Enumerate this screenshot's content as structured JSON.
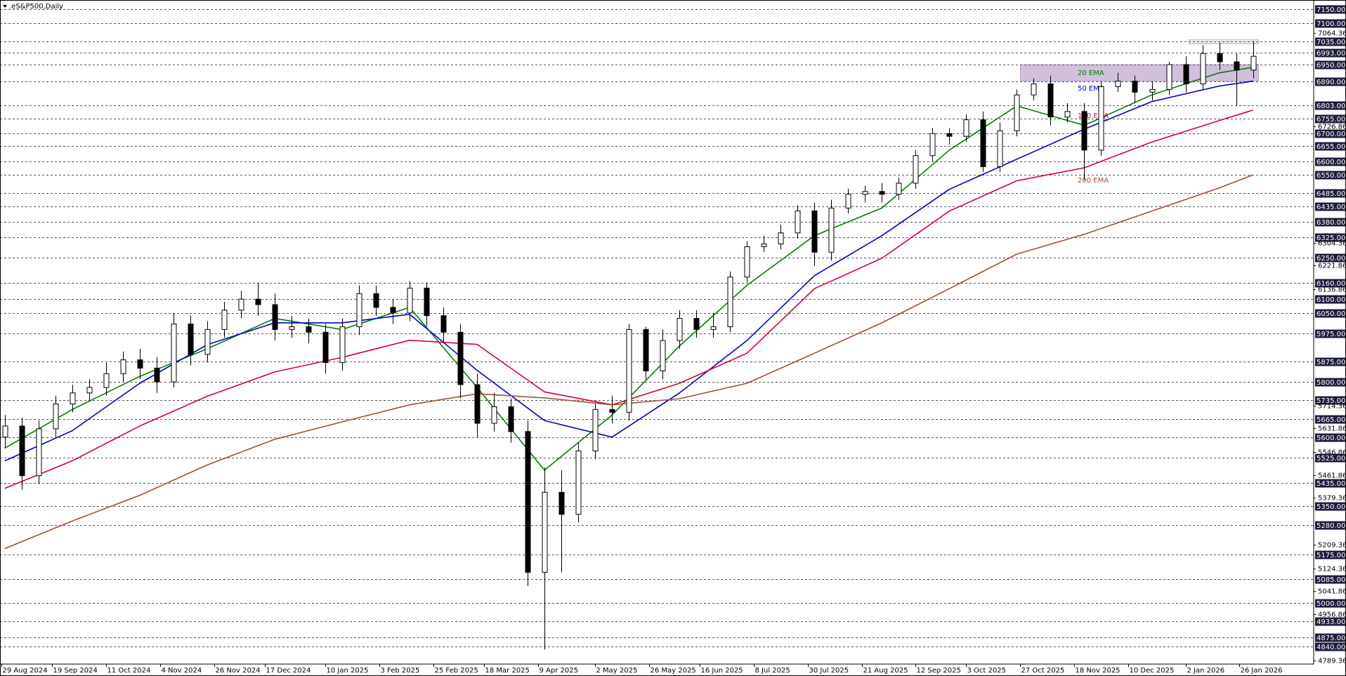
{
  "chart_data": {
    "type": "candlestick",
    "title": ".eS&P500,Daily",
    "ylim": [
      4780,
      7184
    ],
    "xlim": [
      "2024-08-29",
      "2026-02-25"
    ],
    "candles": {
      "x": [
        "2024-08-30",
        "2024-09-06",
        "2024-09-13",
        "2024-09-20",
        "2024-09-27",
        "2024-10-04",
        "2024-10-11",
        "2024-10-18",
        "2024-10-25",
        "2024-11-01",
        "2024-11-08",
        "2024-11-15",
        "2024-11-22",
        "2024-11-29",
        "2024-12-06",
        "2024-12-13",
        "2024-12-20",
        "2024-12-27",
        "2025-01-03",
        "2025-01-10",
        "2025-01-17",
        "2025-01-24",
        "2025-01-31",
        "2025-02-07",
        "2025-02-14",
        "2025-02-21",
        "2025-02-28",
        "2025-03-07",
        "2025-03-14",
        "2025-03-21",
        "2025-03-28",
        "2025-04-04",
        "2025-04-11",
        "2025-04-18",
        "2025-04-25",
        "2025-05-02",
        "2025-05-09",
        "2025-05-16",
        "2025-05-23",
        "2025-05-30",
        "2025-06-06",
        "2025-06-13",
        "2025-06-20",
        "2025-06-27",
        "2025-07-04",
        "2025-07-11",
        "2025-07-18",
        "2025-07-25",
        "2025-08-01",
        "2025-08-08",
        "2025-08-15",
        "2025-08-22",
        "2025-08-29",
        "2025-09-05",
        "2025-09-12",
        "2025-09-19",
        "2025-09-26",
        "2025-10-03",
        "2025-10-10",
        "2025-10-17",
        "2025-10-24",
        "2025-10-31",
        "2025-11-07",
        "2025-11-14",
        "2025-11-21",
        "2025-11-28",
        "2025-12-05",
        "2025-12-12",
        "2025-12-19",
        "2025-12-26",
        "2026-01-02",
        "2026-01-09",
        "2026-01-16",
        "2026-01-23",
        "2026-01-30"
      ],
      "open": [
        5600,
        5640,
        5460,
        5630,
        5720,
        5760,
        5780,
        5830,
        5880,
        5850,
        5800,
        6010,
        5900,
        5990,
        6060,
        6100,
        6080,
        5990,
        6000,
        5980,
        5870,
        6000,
        6120,
        6070,
        6050,
        6140,
        6040,
        5980,
        5790,
        5650,
        5710,
        5620,
        5110,
        5400,
        5320,
        5550,
        5700,
        5690,
        5990,
        5840,
        5950,
        6030,
        5990,
        6000,
        6180,
        6290,
        6300,
        6340,
        6420,
        6270,
        6430,
        6480,
        6490,
        6480,
        6520,
        6620,
        6700,
        6690,
        6750,
        6580,
        6710,
        6840,
        6880,
        6760,
        6780,
        6640,
        6870,
        6890,
        6850,
        6860,
        6950,
        6880,
        6990,
        6960,
        6930
      ],
      "high": [
        5680,
        5670,
        5660,
        5750,
        5790,
        5810,
        5870,
        5910,
        5920,
        5890,
        6050,
        6040,
        6020,
        6090,
        6130,
        6160,
        6120,
        6040,
        6030,
        6010,
        6030,
        6150,
        6150,
        6100,
        6165,
        6160,
        6070,
        6010,
        5830,
        5760,
        5740,
        5660,
        5490,
        5480,
        5580,
        5720,
        5750,
        6010,
        6000,
        5990,
        6060,
        6060,
        6050,
        6200,
        6310,
        6330,
        6370,
        6440,
        6450,
        6460,
        6500,
        6510,
        6520,
        6540,
        6640,
        6720,
        6720,
        6770,
        6780,
        6740,
        6860,
        6900,
        6910,
        6810,
        6810,
        6890,
        6920,
        6910,
        6890,
        6960,
        6980,
        7020,
        7030,
        6990,
        7035
      ],
      "low": [
        5560,
        5410,
        5430,
        5600,
        5690,
        5730,
        5750,
        5800,
        5810,
        5760,
        5780,
        5860,
        5870,
        5960,
        6030,
        6040,
        5950,
        5960,
        5940,
        5830,
        5840,
        5970,
        6040,
        6010,
        6020,
        6000,
        5940,
        5740,
        5600,
        5620,
        5580,
        5060,
        4830,
        5110,
        5290,
        5520,
        5650,
        5660,
        5810,
        5810,
        5920,
        5960,
        5960,
        5980,
        6160,
        6270,
        6280,
        6320,
        6220,
        6240,
        6410,
        6450,
        6450,
        6460,
        6500,
        6600,
        6660,
        6670,
        6560,
        6560,
        6690,
        6820,
        6730,
        6740,
        6530,
        6620,
        6850,
        6810,
        6820,
        6840,
        6850,
        6860,
        6930,
        6800,
        6900
      ],
      "close": [
        5640,
        5460,
        5630,
        5720,
        5760,
        5780,
        5830,
        5880,
        5850,
        5800,
        6010,
        5900,
        5990,
        6060,
        6100,
        6080,
        5990,
        6000,
        5980,
        5870,
        6000,
        6120,
        6070,
        6050,
        6140,
        6040,
        5980,
        5790,
        5650,
        5710,
        5620,
        5110,
        5400,
        5320,
        5550,
        5700,
        5690,
        5990,
        5840,
        5950,
        6030,
        5990,
        6000,
        6180,
        6290,
        6300,
        6340,
        6420,
        6270,
        6430,
        6480,
        6490,
        6480,
        6520,
        6620,
        6700,
        6690,
        6750,
        6580,
        6710,
        6840,
        6880,
        6760,
        6780,
        6640,
        6870,
        6890,
        6850,
        6860,
        6950,
        6880,
        6990,
        6960,
        6930,
        6980
      ]
    },
    "series": [
      {
        "name": "20 EMA",
        "color": "#008000",
        "x": [
          "2024-08-30",
          "2024-09-27",
          "2024-10-25",
          "2024-11-22",
          "2024-12-20",
          "2025-01-17",
          "2025-02-14",
          "2025-03-14",
          "2025-04-11",
          "2025-05-09",
          "2025-06-06",
          "2025-07-04",
          "2025-08-01",
          "2025-08-29",
          "2025-09-26",
          "2025-10-24",
          "2025-11-21",
          "2025-12-19",
          "2026-01-16",
          "2026-01-30"
        ],
        "values": [
          5560,
          5700,
          5820,
          5920,
          6030,
          5990,
          6070,
          5780,
          5480,
          5680,
          5930,
          6150,
          6330,
          6430,
          6640,
          6800,
          6730,
          6840,
          6920,
          6940
        ]
      },
      {
        "name": "50 EMA",
        "color": "#0000cc",
        "x": [
          "2024-08-30",
          "2024-09-27",
          "2024-10-25",
          "2024-11-22",
          "2024-12-20",
          "2025-01-17",
          "2025-02-14",
          "2025-03-14",
          "2025-04-11",
          "2025-05-09",
          "2025-06-06",
          "2025-07-04",
          "2025-08-01",
          "2025-08-29",
          "2025-09-26",
          "2025-10-24",
          "2025-11-21",
          "2025-12-19",
          "2026-01-16",
          "2026-01-30"
        ],
        "values": [
          5514,
          5623,
          5795,
          5935,
          6014,
          6014,
          6045,
          5842,
          5660,
          5600,
          5760,
          5950,
          6185,
          6330,
          6498,
          6607,
          6716,
          6816,
          6872,
          6890
        ]
      },
      {
        "name": "100 EMA",
        "color": "#dd0033",
        "x": [
          "2024-08-30",
          "2024-09-27",
          "2024-10-25",
          "2024-11-22",
          "2024-12-20",
          "2025-01-17",
          "2025-02-14",
          "2025-03-14",
          "2025-04-11",
          "2025-05-09",
          "2025-06-06",
          "2025-07-04",
          "2025-08-01",
          "2025-08-29",
          "2025-09-26",
          "2025-10-24",
          "2025-11-21",
          "2025-12-19",
          "2026-01-16",
          "2026-01-30"
        ],
        "values": [
          5414,
          5514,
          5640,
          5748,
          5836,
          5889,
          5951,
          5936,
          5764,
          5717,
          5795,
          5904,
          6138,
          6248,
          6419,
          6529,
          6576,
          6669,
          6747,
          6785
        ]
      },
      {
        "name": "200 EMA",
        "color": "#a0522d",
        "x": [
          "2024-08-30",
          "2024-09-27",
          "2024-10-25",
          "2024-11-22",
          "2024-12-20",
          "2025-01-17",
          "2025-02-14",
          "2025-03-14",
          "2025-04-11",
          "2025-05-09",
          "2025-06-06",
          "2025-07-04",
          "2025-08-01",
          "2025-08-29",
          "2025-09-26",
          "2025-10-24",
          "2025-11-21",
          "2025-12-19",
          "2026-01-16",
          "2026-01-30"
        ],
        "values": [
          5196,
          5296,
          5389,
          5499,
          5592,
          5655,
          5717,
          5757,
          5742,
          5717,
          5739,
          5795,
          5904,
          6014,
          6138,
          6263,
          6335,
          6419,
          6503,
          6550
        ]
      }
    ],
    "zones": [
      {
        "from": 6890,
        "to": 6950,
        "start": "2025-10-27",
        "end": "2026-01-30",
        "color": "#c9b4d6"
      },
      {
        "from": 7025,
        "to": 7040,
        "start": "2026-01-05",
        "end": "2026-01-30",
        "color": "#e4e2ea"
      }
    ],
    "levels": [
      {
        "value": 7150,
        "label": "7150.00"
      },
      {
        "value": 7100,
        "label": "7100.00"
      },
      {
        "value": 7035,
        "label": "7035.00"
      },
      {
        "value": 6993,
        "label": "6993.00"
      },
      {
        "value": 6950,
        "label": "6950.00"
      },
      {
        "value": 6890,
        "label": "6890.00"
      },
      {
        "value": 6803,
        "label": "6803.00"
      },
      {
        "value": 6755,
        "label": "6755.00"
      },
      {
        "value": 6700,
        "label": "6700.00"
      },
      {
        "value": 6655,
        "label": "6655.00"
      },
      {
        "value": 6600,
        "label": "6600.00"
      },
      {
        "value": 6550,
        "label": "6550.00"
      },
      {
        "value": 6485,
        "label": "6485.00"
      },
      {
        "value": 6435,
        "label": "6435.00"
      },
      {
        "value": 6380,
        "label": "6380.00"
      },
      {
        "value": 6325,
        "label": "6325.00"
      },
      {
        "value": 6250,
        "label": "6250.00"
      },
      {
        "value": 6160,
        "label": "6160.00"
      },
      {
        "value": 6100,
        "label": "6100.00"
      },
      {
        "value": 6050,
        "label": "6050.00"
      },
      {
        "value": 5975,
        "label": "5975.00"
      },
      {
        "value": 5875,
        "label": "5875.00"
      },
      {
        "value": 5800,
        "label": "5800.00"
      },
      {
        "value": 5735,
        "label": "5735.00"
      },
      {
        "value": 5665,
        "label": "5665.00"
      },
      {
        "value": 5600,
        "label": "5600.00"
      },
      {
        "value": 5525,
        "label": "5525.00"
      },
      {
        "value": 5435,
        "label": "5435.00"
      },
      {
        "value": 5350,
        "label": "5350.00"
      },
      {
        "value": 5280,
        "label": "5280.00"
      },
      {
        "value": 5175,
        "label": "5175.00"
      },
      {
        "value": 5085,
        "label": "5085.00"
      },
      {
        "value": 5000,
        "label": "5000.00"
      },
      {
        "value": 4933,
        "label": "4933.00"
      },
      {
        "value": 4875,
        "label": "4875.00"
      },
      {
        "value": 4840,
        "label": "4840.00"
      }
    ],
    "yticks": [
      {
        "value": 7064.36,
        "label": "7064.36"
      },
      {
        "value": 6726.86,
        "label": "6726.86"
      },
      {
        "value": 6304.36,
        "label": "6304.36"
      },
      {
        "value": 6221.86,
        "label": "6221.86"
      },
      {
        "value": 6136.86,
        "label": "6136.86"
      },
      {
        "value": 5714.36,
        "label": "5714.36"
      },
      {
        "value": 5631.86,
        "label": "5631.86"
      },
      {
        "value": 5546.86,
        "label": "5546.86"
      },
      {
        "value": 5461.86,
        "label": "5461.86"
      },
      {
        "value": 5379.36,
        "label": "5379.36"
      },
      {
        "value": 5209.36,
        "label": "5209.36"
      },
      {
        "value": 5124.36,
        "label": "5124.36"
      },
      {
        "value": 5041.86,
        "label": "5041.86"
      },
      {
        "value": 4956.86,
        "label": "4956.86"
      },
      {
        "value": 4789.36,
        "label": "4789.36"
      }
    ],
    "xticks": [
      {
        "value": "2024-08-29",
        "label": "29 Aug 2024"
      },
      {
        "value": "2024-09-19",
        "label": "19 Sep 2024"
      },
      {
        "value": "2024-10-11",
        "label": "11 Oct 2024"
      },
      {
        "value": "2024-11-04",
        "label": "4 Nov 2024"
      },
      {
        "value": "2024-11-26",
        "label": "26 Nov 2024"
      },
      {
        "value": "2024-12-17",
        "label": "17 Dec 2024"
      },
      {
        "value": "2025-01-10",
        "label": "10 Jan 2025"
      },
      {
        "value": "2025-02-03",
        "label": "3 Feb 2025"
      },
      {
        "value": "2025-02-25",
        "label": "25 Feb 2025"
      },
      {
        "value": "2025-03-18",
        "label": "18 Mar 2025"
      },
      {
        "value": "2025-04-09",
        "label": "9 Apr 2025"
      },
      {
        "value": "2025-05-02",
        "label": "2 May 2025"
      },
      {
        "value": "2025-05-26",
        "label": "26 May 2025"
      },
      {
        "value": "2025-06-16",
        "label": "16 Jun 2025"
      },
      {
        "value": "2025-07-08",
        "label": "8 Jul 2025"
      },
      {
        "value": "2025-07-30",
        "label": "30 Jul 2025"
      },
      {
        "value": "2025-08-21",
        "label": "21 Aug 2025"
      },
      {
        "value": "2025-09-12",
        "label": "12 Sep 2025"
      },
      {
        "value": "2025-10-03",
        "label": "3 Oct 2025"
      },
      {
        "value": "2025-10-27",
        "label": "27 Oct 2025"
      },
      {
        "value": "2025-11-18",
        "label": "18 Nov 2025"
      },
      {
        "value": "2025-12-10",
        "label": "10 Dec 2025"
      },
      {
        "value": "2026-01-02",
        "label": "2 Jan 2026"
      },
      {
        "value": "2026-01-26",
        "label": "26 Jan 2026"
      }
    ]
  }
}
